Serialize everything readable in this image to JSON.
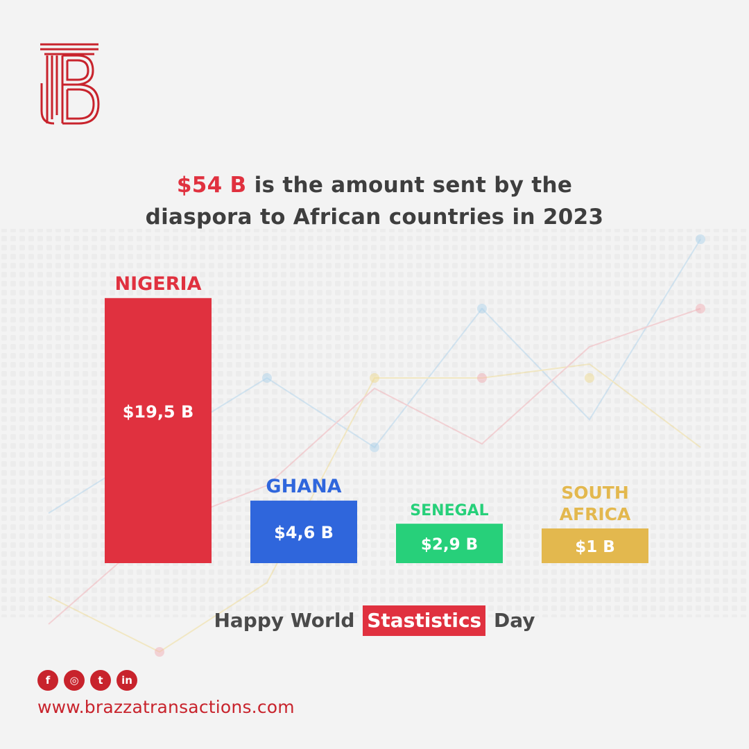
{
  "header": {
    "title_accent": "$54 B",
    "title_line1_rest": "is the amount sent by the",
    "title_line2_plain": "diaspora to",
    "title_line2_bold": "African countries",
    "title_line2_end": "in 2023"
  },
  "chart_data": {
    "type": "bar",
    "categories": [
      "NIGERIA",
      "GHANA",
      "SENEGAL",
      "SOUTH AFRICA"
    ],
    "category_lines": [
      [
        "NIGERIA"
      ],
      [
        "GHANA"
      ],
      [
        "SENEGAL"
      ],
      [
        "SOUTH",
        "AFRICA"
      ]
    ],
    "values": [
      19.5,
      4.6,
      2.9,
      1
    ],
    "value_labels": [
      "$19,5 B",
      "$4,6 B",
      "$2,9 B",
      "$1 B"
    ],
    "colors": [
      "#e0313f",
      "#2f66dc",
      "#27d07a",
      "#e3b84e"
    ],
    "label_colors": [
      "#e0313f",
      "#2f66dc",
      "#27d07a",
      "#e3b84e"
    ],
    "unit": "$ B",
    "title": "$54 B is the amount sent by the diaspora to African countries in 2023",
    "legend": "none",
    "grid": false
  },
  "footer": {
    "message_start": "Happy World",
    "message_highlight": "Stastistics",
    "message_end": "Day",
    "website": "www.brazzatransactions.com",
    "social": [
      {
        "name": "facebook-icon",
        "glyph": "f"
      },
      {
        "name": "instagram-icon",
        "glyph": "◎"
      },
      {
        "name": "twitter-icon",
        "glyph": "t"
      },
      {
        "name": "linkedin-icon",
        "glyph": "in"
      }
    ]
  },
  "brand": {
    "accent": "#c8232c",
    "logo": "tb-monogram-logo"
  }
}
